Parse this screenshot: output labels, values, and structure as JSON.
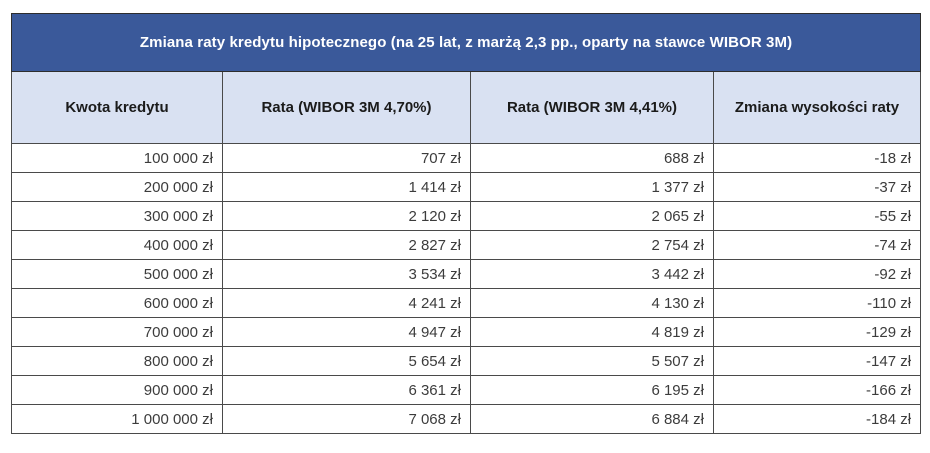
{
  "chart_data": {
    "type": "table",
    "title": "Zmiana raty kredytu hipotecznego (na 25 lat, z marżą 2,3 pp., oparty na stawce WIBOR 3M)",
    "columns": [
      "Kwota kredytu",
      "Rata (WIBOR 3M 4,70%)",
      "Rata (WIBOR 3M 4,41%)",
      "Zmiana wysokości raty"
    ],
    "rows": [
      [
        "100 000 zł",
        "707 zł",
        "688 zł",
        "-18 zł"
      ],
      [
        "200 000 zł",
        "1 414 zł",
        "1 377 zł",
        "-37 zł"
      ],
      [
        "300 000 zł",
        "2 120 zł",
        "2 065 zł",
        "-55 zł"
      ],
      [
        "400 000 zł",
        "2 827 zł",
        "2 754 zł",
        "-74 zł"
      ],
      [
        "500 000 zł",
        "3 534 zł",
        "3 442 zł",
        "-92 zł"
      ],
      [
        "600 000 zł",
        "4 241 zł",
        "4 130 zł",
        "-110 zł"
      ],
      [
        "700 000 zł",
        "4 947 zł",
        "4 819 zł",
        "-129 zł"
      ],
      [
        "800 000 zł",
        "5 654 zł",
        "5 507 zł",
        "-147 zł"
      ],
      [
        "900 000 zł",
        "6 361 zł",
        "6 195 zł",
        "-166 zł"
      ],
      [
        "1 000 000 zł",
        "7 068 zł",
        "6 884 zł",
        "-184 zł"
      ]
    ],
    "layout": {
      "grid": true,
      "title_position": "top-banner",
      "data_alignment": "right",
      "header_alignment": "center"
    }
  },
  "colors": {
    "title_bg": "#3A599A",
    "title_fg": "#FFFFFF",
    "header_bg": "#D9E1F2",
    "header_fg": "#1B1B1B",
    "cell_fg": "#3C3C3C",
    "border_inner": "#4A4A4A",
    "border_outer": "#2D2D2D",
    "page_bg": "#FFFFFF"
  }
}
